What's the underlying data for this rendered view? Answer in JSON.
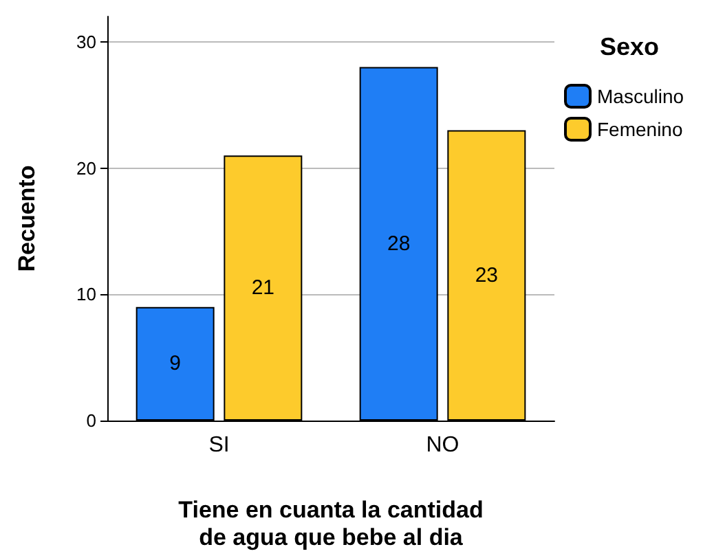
{
  "chart_data": {
    "type": "bar",
    "xlabel": "Tiene en cuanta la cantidad\nde agua que bebe al dia",
    "ylabel": "Recuento",
    "legend_title": "Sexo",
    "categories": [
      "SI",
      "NO"
    ],
    "series": [
      {
        "name": "Masculino",
        "color": "#1f7ef5",
        "values": [
          9,
          28
        ]
      },
      {
        "name": "Femenino",
        "color": "#fdcb2c",
        "values": [
          21,
          23
        ]
      }
    ],
    "ylim": [
      0,
      32
    ],
    "yticks": [
      0,
      10,
      20,
      30
    ],
    "grid": "y",
    "legend": "top right",
    "data_labels": true
  }
}
